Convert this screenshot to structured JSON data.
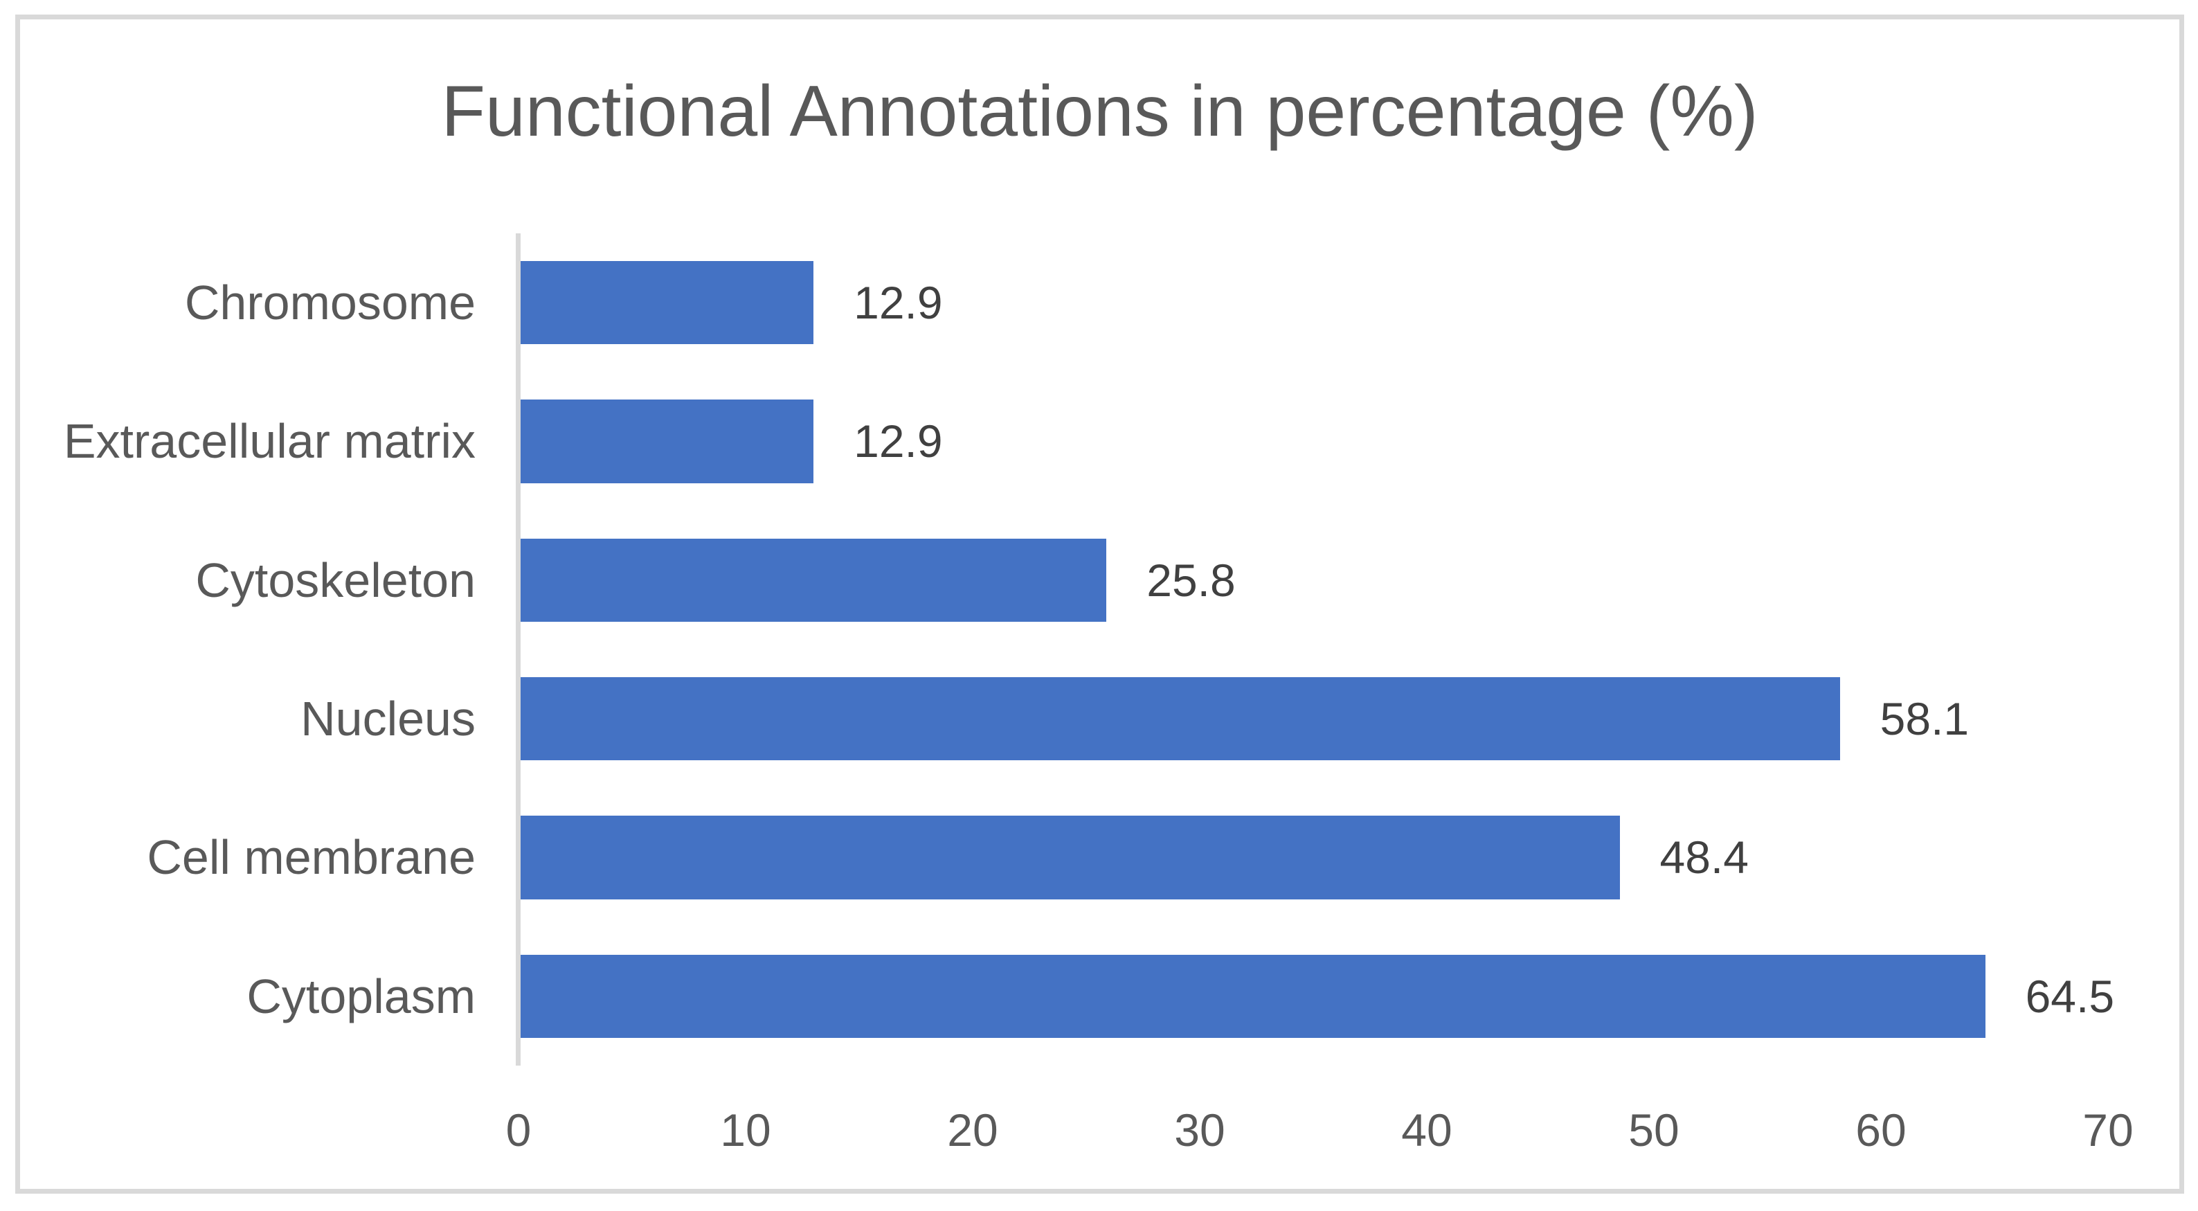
{
  "chart_data": {
    "type": "bar",
    "orientation": "horizontal",
    "title": "Functional Annotations in percentage (%)",
    "categories": [
      "Chromosome",
      "Extracellular matrix",
      "Cytoskeleton",
      "Nucleus",
      "Cell membrane",
      "Cytoplasm"
    ],
    "values": [
      12.9,
      12.9,
      25.8,
      58.1,
      48.4,
      64.5
    ],
    "data_labels": [
      "12.9",
      "12.9",
      "25.8",
      "58.1",
      "48.4",
      "64.5"
    ],
    "xlabel": "",
    "ylabel": "",
    "xlim": [
      0,
      70
    ],
    "x_ticks": [
      0,
      10,
      20,
      30,
      40,
      50,
      60,
      70
    ],
    "grid": false,
    "legend": false,
    "bar_color": "#4472C4",
    "axis_line_color": "#D9D9D9",
    "frame_border_color": "#D9D9D9",
    "title_color": "#595959",
    "category_label_color": "#595959",
    "tick_label_color": "#595959",
    "data_label_color": "#404040",
    "background_color": "#FFFFFF"
  }
}
